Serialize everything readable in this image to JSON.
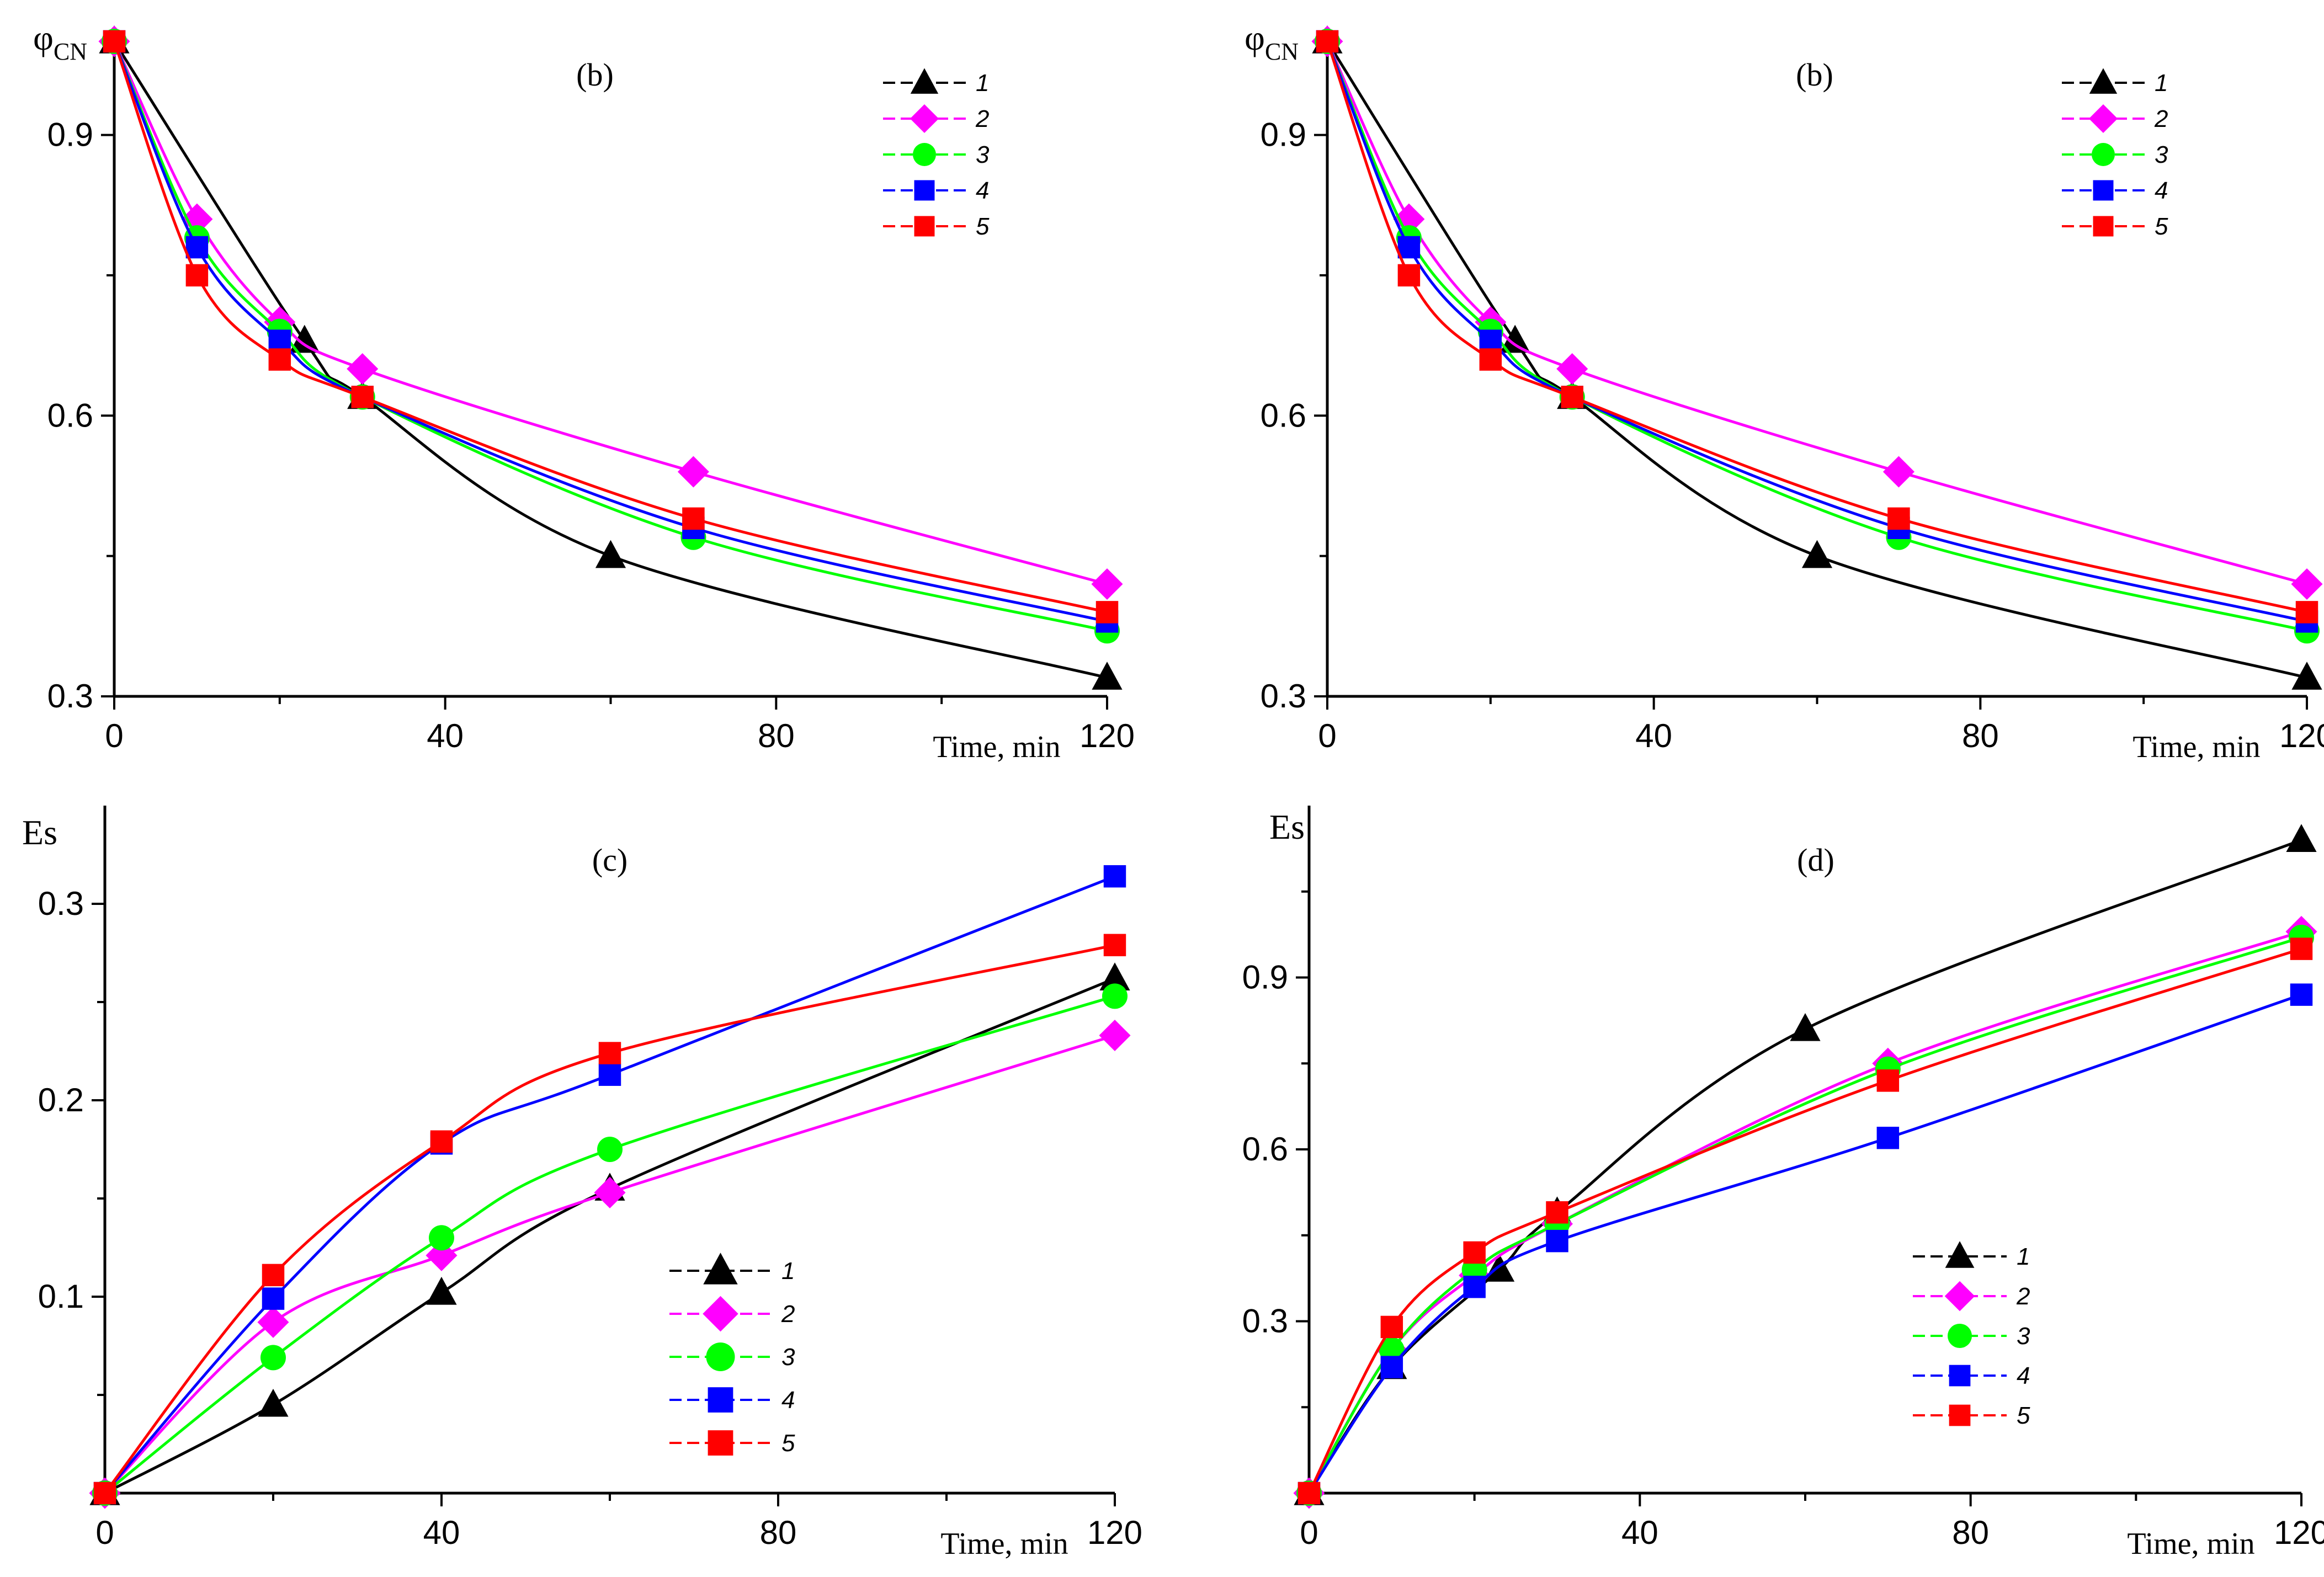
{
  "colors": {
    "1": "#000000",
    "2": "#ff00ff",
    "3": "#00ff00",
    "4": "#0000ff",
    "5": "#ff0000"
  },
  "chart_data": [
    {
      "type": "line",
      "panel_label": "(b)",
      "ylabel": "φ",
      "ylabel_sub": "CN",
      "xlabel": "Time, min",
      "xlim": [
        0,
        120
      ],
      "ylim": [
        0.3,
        1.0
      ],
      "xticks": [
        "0",
        "40",
        "80",
        "120"
      ],
      "yticks": [
        "0.3",
        "0.6",
        "0.9"
      ],
      "legend": "top-right",
      "series": [
        {
          "name": "1",
          "marker": "triangle",
          "points": [
            [
              0,
              1.0
            ],
            [
              23,
              0.68
            ],
            [
              30,
              0.62
            ],
            [
              60,
              0.45
            ],
            [
              120,
              0.32
            ]
          ]
        },
        {
          "name": "2",
          "marker": "diamond",
          "points": [
            [
              0,
              1.0
            ],
            [
              10,
              0.81
            ],
            [
              20,
              0.7
            ],
            [
              30,
              0.65
            ],
            [
              70,
              0.54
            ],
            [
              120,
              0.42
            ]
          ]
        },
        {
          "name": "3",
          "marker": "circle",
          "points": [
            [
              0,
              1.0
            ],
            [
              10,
              0.79
            ],
            [
              20,
              0.69
            ],
            [
              30,
              0.62
            ],
            [
              70,
              0.47
            ],
            [
              120,
              0.37
            ]
          ]
        },
        {
          "name": "4",
          "marker": "square",
          "points": [
            [
              0,
              1.0
            ],
            [
              10,
              0.78
            ],
            [
              20,
              0.68
            ],
            [
              30,
              0.62
            ],
            [
              70,
              0.48
            ],
            [
              120,
              0.38
            ]
          ]
        },
        {
          "name": "5",
          "marker": "square",
          "points": [
            [
              0,
              1.0
            ],
            [
              10,
              0.75
            ],
            [
              20,
              0.66
            ],
            [
              30,
              0.62
            ],
            [
              70,
              0.49
            ],
            [
              120,
              0.39
            ]
          ]
        }
      ]
    },
    {
      "type": "line",
      "panel_label": "(b)",
      "ylabel": "φ",
      "ylabel_sub": "CN",
      "xlabel": "Time, min",
      "xlim": [
        0,
        120
      ],
      "ylim": [
        0.3,
        1.0
      ],
      "xticks": [
        "0",
        "40",
        "80",
        "120"
      ],
      "yticks": [
        "0.3",
        "0.6",
        "0.9"
      ],
      "legend": "top-right",
      "series": [
        {
          "name": "1",
          "marker": "triangle",
          "points": [
            [
              0,
              1.0
            ],
            [
              23,
              0.68
            ],
            [
              30,
              0.62
            ],
            [
              60,
              0.45
            ],
            [
              120,
              0.32
            ]
          ]
        },
        {
          "name": "2",
          "marker": "diamond",
          "points": [
            [
              0,
              1.0
            ],
            [
              10,
              0.81
            ],
            [
              20,
              0.7
            ],
            [
              30,
              0.65
            ],
            [
              70,
              0.54
            ],
            [
              120,
              0.42
            ]
          ]
        },
        {
          "name": "3",
          "marker": "circle",
          "points": [
            [
              0,
              1.0
            ],
            [
              10,
              0.79
            ],
            [
              20,
              0.69
            ],
            [
              30,
              0.62
            ],
            [
              70,
              0.47
            ],
            [
              120,
              0.37
            ]
          ]
        },
        {
          "name": "4",
          "marker": "square",
          "points": [
            [
              0,
              1.0
            ],
            [
              10,
              0.78
            ],
            [
              20,
              0.68
            ],
            [
              30,
              0.62
            ],
            [
              70,
              0.48
            ],
            [
              120,
              0.38
            ]
          ]
        },
        {
          "name": "5",
          "marker": "square",
          "points": [
            [
              0,
              1.0
            ],
            [
              10,
              0.75
            ],
            [
              20,
              0.66
            ],
            [
              30,
              0.62
            ],
            [
              70,
              0.49
            ],
            [
              120,
              0.39
            ]
          ]
        }
      ]
    },
    {
      "type": "line",
      "panel_label": "(c)",
      "ylabel": "Es",
      "xlabel": "Time, min",
      "xlim": [
        0,
        120
      ],
      "ylim": [
        0,
        0.35
      ],
      "xticks": [
        "0",
        "40",
        "80",
        "120"
      ],
      "yticks": [
        "0.1",
        "0.2",
        "0.3"
      ],
      "legend": "bottom-right",
      "series": [
        {
          "name": "1",
          "marker": "triangle",
          "points": [
            [
              0,
              0.0
            ],
            [
              20,
              0.045
            ],
            [
              40,
              0.102
            ],
            [
              60,
              0.155
            ],
            [
              120,
              0.262
            ]
          ]
        },
        {
          "name": "2",
          "marker": "diamond",
          "points": [
            [
              0,
              0.0
            ],
            [
              20,
              0.087
            ],
            [
              40,
              0.121
            ],
            [
              60,
              0.153
            ],
            [
              120,
              0.233
            ]
          ]
        },
        {
          "name": "3",
          "marker": "circle",
          "points": [
            [
              0,
              0.0
            ],
            [
              20,
              0.069
            ],
            [
              40,
              0.13
            ],
            [
              60,
              0.175
            ],
            [
              120,
              0.253
            ]
          ]
        },
        {
          "name": "4",
          "marker": "square",
          "points": [
            [
              0,
              0.0
            ],
            [
              20,
              0.099
            ],
            [
              40,
              0.178
            ],
            [
              60,
              0.213
            ],
            [
              120,
              0.314
            ]
          ]
        },
        {
          "name": "5",
          "marker": "square",
          "points": [
            [
              0,
              0.0
            ],
            [
              20,
              0.111
            ],
            [
              40,
              0.179
            ],
            [
              60,
              0.224
            ],
            [
              120,
              0.279
            ]
          ]
        }
      ]
    },
    {
      "type": "line",
      "panel_label": "(d)",
      "ylabel": "Es",
      "xlabel": "Time, min",
      "xlim": [
        0,
        120
      ],
      "ylim": [
        0,
        1.2
      ],
      "xticks": [
        "0",
        "40",
        "80",
        "120"
      ],
      "yticks": [
        "0.3",
        "0.6",
        "0.9"
      ],
      "legend": "bottom-right",
      "series": [
        {
          "name": "1",
          "marker": "triangle",
          "points": [
            [
              0,
              0.0
            ],
            [
              10,
              0.22
            ],
            [
              23,
              0.39
            ],
            [
              30,
              0.49
            ],
            [
              60,
              0.81
            ],
            [
              120,
              1.14
            ]
          ]
        },
        {
          "name": "2",
          "marker": "diamond",
          "points": [
            [
              0,
              0.0
            ],
            [
              10,
              0.25
            ],
            [
              20,
              0.38
            ],
            [
              30,
              0.47
            ],
            [
              70,
              0.75
            ],
            [
              120,
              0.98
            ]
          ]
        },
        {
          "name": "3",
          "marker": "circle",
          "points": [
            [
              0,
              0.0
            ],
            [
              10,
              0.25
            ],
            [
              20,
              0.39
            ],
            [
              30,
              0.47
            ],
            [
              70,
              0.74
            ],
            [
              120,
              0.97
            ]
          ]
        },
        {
          "name": "4",
          "marker": "square",
          "points": [
            [
              0,
              0.0
            ],
            [
              10,
              0.22
            ],
            [
              20,
              0.36
            ],
            [
              30,
              0.44
            ],
            [
              70,
              0.62
            ],
            [
              120,
              0.87
            ]
          ]
        },
        {
          "name": "5",
          "marker": "square",
          "points": [
            [
              0,
              0.0
            ],
            [
              10,
              0.29
            ],
            [
              20,
              0.42
            ],
            [
              30,
              0.49
            ],
            [
              70,
              0.72
            ],
            [
              120,
              0.95
            ]
          ]
        }
      ]
    }
  ]
}
